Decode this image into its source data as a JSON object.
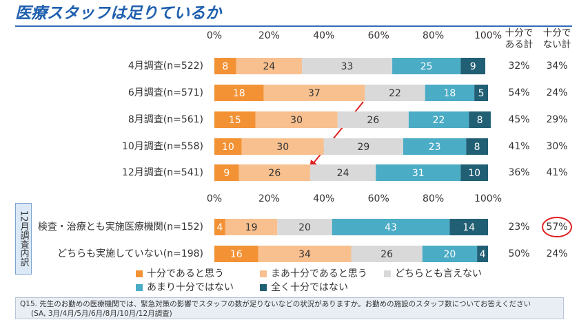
{
  "chart_data": {
    "type": "stacked-barh",
    "title": "医療スタッフは足りているか",
    "categories": [
      "4月調査(n=522)",
      "6月調査(n=571)",
      "8月調査(n=561)",
      "10月調査(n=558)",
      "12月調査(n=541)",
      "検査・治療とも実施医療機関(n=152)",
      "どちらも実施していない(n=198)"
    ],
    "breakdown_label": "12月調査内訳",
    "series": [
      {
        "name": "十分であると思う",
        "color": "#f39234",
        "label_color": "#ffffff",
        "values": [
          8,
          18,
          15,
          10,
          9,
          4,
          16
        ]
      },
      {
        "name": "まあ十分であると思う",
        "color": "#f8c08f",
        "label_color": "#333333",
        "values": [
          24,
          37,
          30,
          30,
          26,
          19,
          34
        ]
      },
      {
        "name": "どちらとも言えない",
        "color": "#d9d9d9",
        "label_color": "#333333",
        "values": [
          33,
          22,
          26,
          29,
          24,
          20,
          26
        ]
      },
      {
        "name": "あまり十分ではない",
        "color": "#4bacc6",
        "label_color": "#ffffff",
        "values": [
          25,
          18,
          22,
          23,
          31,
          43,
          20
        ]
      },
      {
        "name": "全く十分ではない",
        "color": "#215f74",
        "label_color": "#ffffff",
        "values": [
          9,
          5,
          8,
          8,
          10,
          14,
          4
        ]
      }
    ],
    "totals": [
      {
        "name": "十分である計",
        "values": [
          32,
          54,
          45,
          41,
          36,
          23,
          50
        ],
        "value_labels": [
          "32%",
          "54%",
          "45%",
          "41%",
          "36%",
          "23%",
          "50%"
        ]
      },
      {
        "name": "十分でない計",
        "values": [
          34,
          24,
          29,
          30,
          41,
          57,
          24
        ],
        "value_labels": [
          "34%",
          "24%",
          "29%",
          "30%",
          "41%",
          "57%",
          "24%"
        ]
      }
    ],
    "xlim": [
      0,
      100
    ],
    "xticks": [
      {
        "value": 0,
        "label": "0%"
      },
      {
        "value": 20,
        "label": "20%"
      },
      {
        "value": 40,
        "label": "40%"
      },
      {
        "value": 60,
        "label": "60%"
      },
      {
        "value": 80,
        "label": "80%"
      },
      {
        "value": 100,
        "label": "100%"
      }
    ],
    "footnote": [
      "Q15. 先生のお勤めの医療機関では、緊急対策の影響でスタッフの数が足りないなどの状況がありますか。お勤めの施設のスタッフ数についてお答えください",
      "(SA, 3月/4月/5月/6月/8月/10月/12月調査)"
    ]
  }
}
